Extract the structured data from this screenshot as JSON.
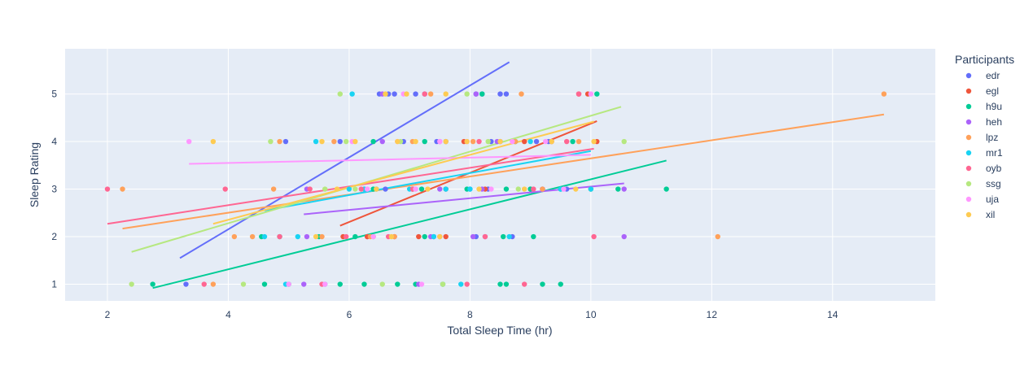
{
  "chart_data": {
    "type": "scatter",
    "title": "",
    "xlabel": "Total Sleep Time (hr)",
    "ylabel": "Sleep Rating",
    "xlim": [
      1.3,
      15.7
    ],
    "ylim": [
      0.65,
      5.95
    ],
    "x_ticks": [
      2,
      4,
      6,
      8,
      10,
      12,
      14
    ],
    "y_ticks": [
      1,
      2,
      3,
      4,
      5
    ],
    "grid": true,
    "legend_title": "Participants",
    "legend_position": "right",
    "series": [
      {
        "name": "edr",
        "color": "#636efa",
        "trendline": [
          [
            3.2,
            1.55
          ],
          [
            8.65,
            5.67
          ]
        ],
        "points": [
          [
            3.3,
            1
          ],
          [
            6.5,
            5
          ],
          [
            6.65,
            5
          ],
          [
            6.75,
            5
          ],
          [
            7.1,
            5
          ],
          [
            7.25,
            5
          ],
          [
            8.1,
            5
          ],
          [
            8.2,
            5
          ],
          [
            8.5,
            5
          ],
          [
            8.6,
            5
          ],
          [
            5.85,
            4
          ],
          [
            6.9,
            4
          ],
          [
            7.45,
            4
          ],
          [
            7.6,
            4
          ],
          [
            8.35,
            4
          ],
          [
            8.5,
            4
          ],
          [
            9.1,
            4
          ],
          [
            9.3,
            4
          ],
          [
            4.95,
            4
          ],
          [
            6.6,
            3
          ],
          [
            7.05,
            3
          ],
          [
            7.6,
            3
          ],
          [
            8.0,
            3
          ],
          [
            8.3,
            3
          ],
          [
            9.2,
            3
          ],
          [
            9.6,
            3
          ],
          [
            6.3,
            2
          ],
          [
            7.4,
            2
          ],
          [
            8.1,
            2
          ],
          [
            8.7,
            2
          ]
        ]
      },
      {
        "name": "egl",
        "color": "#ef553b",
        "trendline": [
          [
            5.85,
            2.23
          ],
          [
            10.1,
            4.43
          ]
        ],
        "points": [
          [
            9.8,
            5
          ],
          [
            9.95,
            5
          ],
          [
            10.1,
            4
          ],
          [
            9.35,
            4
          ],
          [
            8.9,
            4
          ],
          [
            7.9,
            4
          ],
          [
            7.05,
            3
          ],
          [
            8.25,
            3
          ],
          [
            9.0,
            3
          ],
          [
            6.75,
            2
          ],
          [
            5.9,
            2
          ],
          [
            7.6,
            2
          ],
          [
            6.3,
            2
          ],
          [
            7.15,
            2
          ]
        ]
      },
      {
        "name": "h9u",
        "color": "#00cc96",
        "trendline": [
          [
            2.75,
            0.92
          ],
          [
            11.25,
            3.6
          ]
        ],
        "points": [
          [
            2.75,
            1
          ],
          [
            4.6,
            1
          ],
          [
            5.0,
            1
          ],
          [
            5.85,
            1
          ],
          [
            6.25,
            1
          ],
          [
            6.8,
            1
          ],
          [
            7.1,
            1
          ],
          [
            7.55,
            1
          ],
          [
            8.5,
            1
          ],
          [
            8.6,
            1
          ],
          [
            9.2,
            1
          ],
          [
            9.5,
            1
          ],
          [
            4.55,
            2
          ],
          [
            4.85,
            2
          ],
          [
            5.5,
            2
          ],
          [
            6.1,
            2
          ],
          [
            7.25,
            2
          ],
          [
            8.55,
            2
          ],
          [
            9.05,
            2
          ],
          [
            11.25,
            3
          ],
          [
            10.45,
            3
          ],
          [
            10.0,
            3
          ],
          [
            9.5,
            3
          ],
          [
            9.0,
            3
          ],
          [
            8.6,
            3
          ],
          [
            7.95,
            3
          ],
          [
            7.2,
            3
          ],
          [
            6.4,
            3
          ],
          [
            9.7,
            4
          ],
          [
            8.75,
            4
          ],
          [
            7.25,
            4
          ],
          [
            6.4,
            4
          ],
          [
            10.1,
            5
          ],
          [
            8.2,
            5
          ]
        ]
      },
      {
        "name": "heh",
        "color": "#ab63fa",
        "trendline": [
          [
            5.25,
            2.47
          ],
          [
            10.55,
            3.12
          ]
        ],
        "points": [
          [
            5.25,
            1
          ],
          [
            7.15,
            1
          ],
          [
            5.3,
            2
          ],
          [
            6.4,
            2
          ],
          [
            7.35,
            2
          ],
          [
            8.05,
            2
          ],
          [
            8.25,
            2
          ],
          [
            10.55,
            2
          ],
          [
            5.3,
            3
          ],
          [
            6.25,
            3
          ],
          [
            7.5,
            3
          ],
          [
            8.2,
            3
          ],
          [
            9.2,
            3
          ],
          [
            10.55,
            3
          ],
          [
            6.55,
            4
          ],
          [
            7.5,
            4
          ],
          [
            8.45,
            4
          ],
          [
            6.55,
            5
          ],
          [
            8.1,
            5
          ]
        ]
      },
      {
        "name": "lpz",
        "color": "#ffa15a",
        "trendline": [
          [
            2.25,
            2.17
          ],
          [
            14.85,
            4.57
          ]
        ],
        "points": [
          [
            2.25,
            3
          ],
          [
            3.75,
            1
          ],
          [
            4.1,
            2
          ],
          [
            4.4,
            2
          ],
          [
            4.75,
            3
          ],
          [
            4.85,
            4
          ],
          [
            5.55,
            2
          ],
          [
            6.35,
            2
          ],
          [
            7.05,
            4
          ],
          [
            7.6,
            3
          ],
          [
            8.05,
            4
          ],
          [
            8.75,
            4
          ],
          [
            8.85,
            5
          ],
          [
            9.2,
            3
          ],
          [
            9.8,
            4
          ],
          [
            10.0,
            3
          ],
          [
            12.1,
            2
          ],
          [
            14.85,
            5
          ],
          [
            7.35,
            5
          ],
          [
            6.75,
            2
          ],
          [
            5.75,
            4
          ]
        ]
      },
      {
        "name": "mr1",
        "color": "#19d3f3",
        "trendline": [
          [
            4.6,
            2.55
          ],
          [
            10.0,
            3.8
          ]
        ],
        "points": [
          [
            4.6,
            2
          ],
          [
            4.95,
            1
          ],
          [
            5.15,
            2
          ],
          [
            5.45,
            4
          ],
          [
            6.0,
            3
          ],
          [
            6.25,
            3
          ],
          [
            6.45,
            3
          ],
          [
            7.0,
            3
          ],
          [
            7.4,
            2
          ],
          [
            7.6,
            3
          ],
          [
            8.0,
            3
          ],
          [
            8.65,
            2
          ],
          [
            9.0,
            4
          ],
          [
            9.5,
            3
          ],
          [
            10.0,
            3
          ],
          [
            7.85,
            1
          ],
          [
            5.6,
            1
          ],
          [
            6.05,
            5
          ]
        ]
      },
      {
        "name": "oyb",
        "color": "#ff6692",
        "trendline": [
          [
            2.0,
            2.27
          ],
          [
            10.05,
            3.85
          ]
        ],
        "points": [
          [
            2.0,
            3
          ],
          [
            3.6,
            1
          ],
          [
            3.95,
            3
          ],
          [
            4.85,
            2
          ],
          [
            5.55,
            1
          ],
          [
            5.35,
            3
          ],
          [
            5.95,
            2
          ],
          [
            6.65,
            2
          ],
          [
            7.05,
            3
          ],
          [
            7.5,
            2
          ],
          [
            7.95,
            1
          ],
          [
            8.25,
            2
          ],
          [
            8.9,
            1
          ],
          [
            9.05,
            3
          ],
          [
            9.6,
            4
          ],
          [
            10.05,
            2
          ],
          [
            9.8,
            5
          ],
          [
            8.15,
            4
          ],
          [
            7.25,
            5
          ],
          [
            6.2,
            3
          ]
        ]
      },
      {
        "name": "ssg",
        "color": "#b6e880",
        "trendline": [
          [
            2.4,
            1.68
          ],
          [
            10.5,
            4.73
          ]
        ],
        "points": [
          [
            2.4,
            1
          ],
          [
            4.25,
            1
          ],
          [
            4.7,
            4
          ],
          [
            5.85,
            5
          ],
          [
            5.95,
            4
          ],
          [
            6.1,
            3
          ],
          [
            6.4,
            2
          ],
          [
            6.55,
            1
          ],
          [
            7.1,
            3
          ],
          [
            7.55,
            1
          ],
          [
            7.95,
            5
          ],
          [
            8.3,
            4
          ],
          [
            8.8,
            3
          ],
          [
            10.55,
            4
          ],
          [
            6.85,
            4
          ],
          [
            5.6,
            3
          ]
        ]
      },
      {
        "name": "uja",
        "color": "#ff97ff",
        "trendline": [
          [
            3.35,
            3.53
          ],
          [
            10.0,
            3.72
          ]
        ],
        "points": [
          [
            3.35,
            4
          ],
          [
            5.0,
            1
          ],
          [
            5.6,
            1
          ],
          [
            6.05,
            4
          ],
          [
            6.3,
            3
          ],
          [
            6.8,
            4
          ],
          [
            7.1,
            3
          ],
          [
            7.2,
            1
          ],
          [
            7.5,
            4
          ],
          [
            7.95,
            4
          ],
          [
            8.35,
            3
          ],
          [
            8.7,
            4
          ],
          [
            9.25,
            4
          ],
          [
            9.55,
            3
          ],
          [
            10.0,
            5
          ],
          [
            6.9,
            5
          ],
          [
            6.4,
            2
          ]
        ]
      },
      {
        "name": "xil",
        "color": "#fecb52",
        "trendline": [
          [
            3.75,
            2.27
          ],
          [
            10.05,
            4.42
          ]
        ],
        "points": [
          [
            3.75,
            4
          ],
          [
            5.55,
            4
          ],
          [
            5.8,
            3
          ],
          [
            6.1,
            4
          ],
          [
            6.45,
            3
          ],
          [
            6.6,
            5
          ],
          [
            6.8,
            4
          ],
          [
            7.1,
            4
          ],
          [
            7.3,
            3
          ],
          [
            7.6,
            4
          ],
          [
            7.95,
            4
          ],
          [
            8.15,
            3
          ],
          [
            8.5,
            4
          ],
          [
            8.9,
            3
          ],
          [
            9.35,
            4
          ],
          [
            9.75,
            3
          ],
          [
            10.05,
            4
          ],
          [
            6.7,
            2
          ],
          [
            7.5,
            2
          ],
          [
            5.45,
            2
          ],
          [
            6.95,
            5
          ],
          [
            7.6,
            5
          ]
        ]
      }
    ]
  }
}
